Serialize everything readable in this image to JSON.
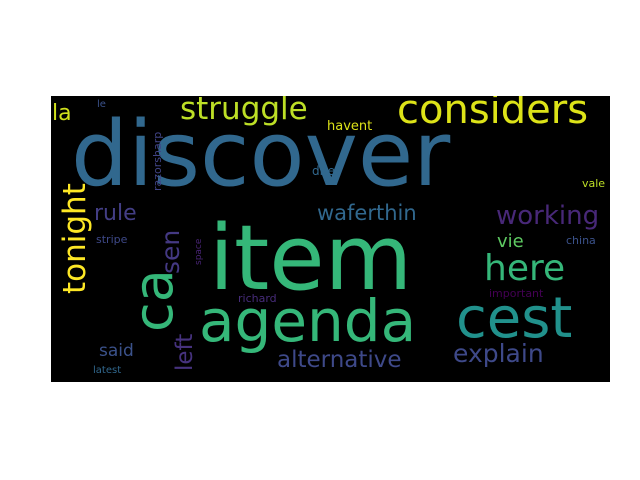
{
  "words": [
    {
      "key": "discover",
      "text": "discover",
      "color": "#31688e"
    },
    {
      "key": "item",
      "text": "item",
      "color": "#35b779"
    },
    {
      "key": "agenda",
      "text": "agenda",
      "color": "#35b779"
    },
    {
      "key": "cest",
      "text": "cest",
      "color": "#21918c"
    },
    {
      "key": "ca",
      "text": "ca",
      "color": "#35b779"
    },
    {
      "key": "considers",
      "text": "considers",
      "color": "#dde318"
    },
    {
      "key": "struggle",
      "text": "struggle",
      "color": "#bddf26"
    },
    {
      "key": "working",
      "text": "working",
      "color": "#482878"
    },
    {
      "key": "here",
      "text": "here",
      "color": "#35b779"
    },
    {
      "key": "tonight",
      "text": "tonight",
      "color": "#fde725"
    },
    {
      "key": "explain",
      "text": "explain",
      "color": "#3e4989"
    },
    {
      "key": "alternative",
      "text": "alternative",
      "color": "#3e4989"
    },
    {
      "key": "waferthin",
      "text": "waferthin",
      "color": "#31688e"
    },
    {
      "key": "rule",
      "text": "rule",
      "color": "#433e85"
    },
    {
      "key": "sen",
      "text": "sen",
      "color": "#443983"
    },
    {
      "key": "la",
      "text": "la",
      "color": "#d0e11c"
    },
    {
      "key": "left",
      "text": "left",
      "color": "#46327e"
    },
    {
      "key": "said",
      "text": "said",
      "color": "#3b528b"
    },
    {
      "key": "vie",
      "text": "vie",
      "color": "#5ec962"
    },
    {
      "key": "havent",
      "text": "havent",
      "color": "#dde318"
    },
    {
      "key": "dire",
      "text": "dire",
      "color": "#31688e"
    },
    {
      "key": "vale",
      "text": "vale",
      "color": "#bddf26"
    },
    {
      "key": "china",
      "text": "china",
      "color": "#3b528b"
    },
    {
      "key": "stripe",
      "text": "stripe",
      "color": "#3e4989"
    },
    {
      "key": "richard",
      "text": "richard",
      "color": "#472c7a"
    },
    {
      "key": "important",
      "text": "important",
      "color": "#440154"
    },
    {
      "key": "latest",
      "text": "latest",
      "color": "#31688e"
    },
    {
      "key": "razorsharp",
      "text": "razorsharp",
      "color": "#414487"
    },
    {
      "key": "le",
      "text": "le",
      "color": "#3b528b"
    },
    {
      "key": "space",
      "text": "space",
      "color": "#482475"
    }
  ]
}
